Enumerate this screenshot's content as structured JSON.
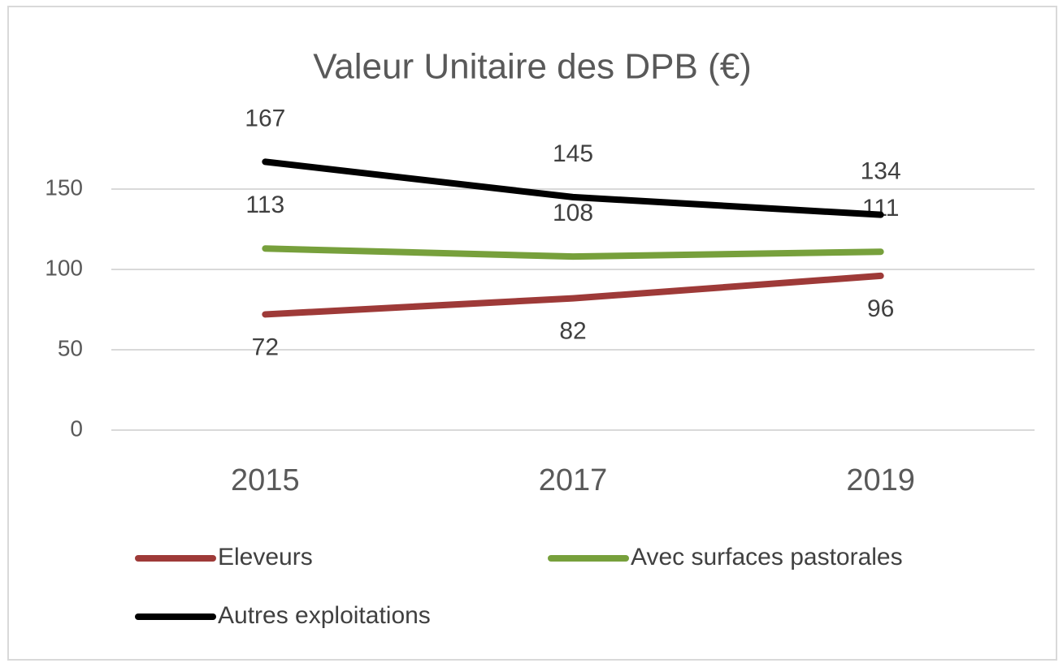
{
  "chart_data": {
    "type": "line",
    "title": "Valeur Unitaire des  DPB (€)",
    "categories": [
      "2015",
      "2017",
      "2019"
    ],
    "series": [
      {
        "name": "Eleveurs",
        "color": "#9e3a38",
        "values": [
          72,
          82,
          96
        ]
      },
      {
        "name": "Avec surfaces pastorales",
        "color": "#77a03c",
        "values": [
          113,
          108,
          111
        ]
      },
      {
        "name": "Autres exploitations",
        "color": "#000000",
        "values": [
          167,
          145,
          134
        ]
      }
    ],
    "ylim": [
      0,
      180
    ],
    "yticks": [
      0,
      50,
      100,
      150
    ],
    "grid": true,
    "legend": "bottom"
  }
}
